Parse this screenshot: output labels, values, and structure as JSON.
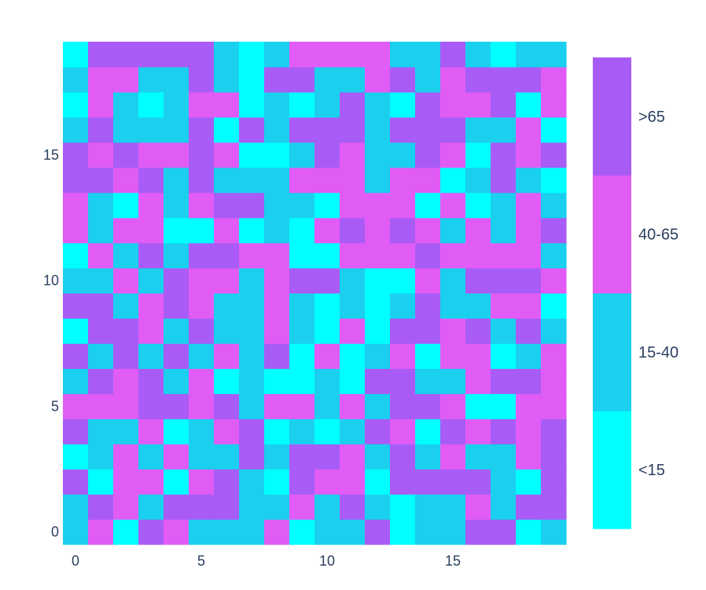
{
  "chart_data": {
    "type": "heatmap",
    "x_ticks": [
      "0",
      "5",
      "10",
      "15"
    ],
    "y_ticks": [
      "0",
      "5",
      "10",
      "15"
    ],
    "x_tick_values": [
      0,
      5,
      10,
      15
    ],
    "y_tick_values": [
      0,
      5,
      10,
      15
    ],
    "xlim": [
      -0.5,
      19.5
    ],
    "ylim": [
      -0.5,
      18.5
    ],
    "grid": false,
    "legend_position": "right",
    "colorbar": {
      "labels": [
        "<15",
        "15-40",
        "40-65",
        ">65"
      ],
      "colors": [
        "#00ffff",
        "#1ad0ee",
        "#e05cf5",
        "#a85cf5"
      ]
    },
    "category_codes": {
      "0": "<15",
      "1": "15-40",
      "2": "40-65",
      "3": ">65"
    },
    "z": [
      [
        1,
        2,
        0,
        3,
        2,
        1,
        1,
        1,
        2,
        0,
        1,
        1,
        3,
        0,
        1,
        1,
        3,
        3,
        0,
        1
      ],
      [
        1,
        3,
        2,
        1,
        3,
        3,
        3,
        1,
        1,
        2,
        1,
        3,
        1,
        0,
        1,
        1,
        2,
        1,
        3,
        3
      ],
      [
        3,
        0,
        2,
        2,
        0,
        2,
        3,
        1,
        0,
        3,
        2,
        2,
        0,
        3,
        3,
        3,
        3,
        1,
        0,
        3
      ],
      [
        0,
        1,
        2,
        1,
        2,
        1,
        1,
        3,
        1,
        3,
        3,
        2,
        1,
        3,
        1,
        2,
        1,
        1,
        2,
        3
      ],
      [
        3,
        1,
        1,
        2,
        0,
        1,
        2,
        3,
        0,
        1,
        0,
        1,
        3,
        2,
        0,
        3,
        2,
        3,
        2,
        3
      ],
      [
        2,
        2,
        2,
        3,
        3,
        2,
        3,
        1,
        2,
        2,
        1,
        2,
        1,
        3,
        3,
        2,
        0,
        0,
        2,
        2
      ],
      [
        1,
        3,
        2,
        3,
        1,
        2,
        0,
        1,
        0,
        0,
        1,
        0,
        3,
        3,
        1,
        1,
        2,
        3,
        3,
        2
      ],
      [
        3,
        1,
        3,
        1,
        3,
        1,
        2,
        1,
        3,
        0,
        2,
        0,
        1,
        2,
        0,
        2,
        2,
        0,
        1,
        2
      ],
      [
        0,
        3,
        3,
        2,
        1,
        3,
        1,
        1,
        2,
        1,
        0,
        2,
        0,
        3,
        3,
        2,
        3,
        1,
        3,
        1
      ],
      [
        3,
        3,
        1,
        2,
        3,
        2,
        1,
        1,
        2,
        1,
        0,
        1,
        0,
        1,
        3,
        1,
        1,
        2,
        2,
        0
      ],
      [
        1,
        1,
        2,
        1,
        3,
        2,
        2,
        1,
        2,
        3,
        3,
        1,
        0,
        0,
        2,
        1,
        3,
        3,
        3,
        2
      ],
      [
        0,
        2,
        1,
        3,
        1,
        3,
        3,
        2,
        2,
        0,
        0,
        2,
        2,
        2,
        3,
        2,
        2,
        2,
        2,
        1
      ],
      [
        2,
        1,
        2,
        2,
        0,
        0,
        2,
        0,
        1,
        0,
        2,
        3,
        2,
        3,
        2,
        1,
        2,
        1,
        2,
        3
      ],
      [
        2,
        1,
        0,
        2,
        1,
        2,
        3,
        3,
        1,
        1,
        0,
        2,
        2,
        2,
        0,
        2,
        0,
        1,
        2,
        1
      ],
      [
        3,
        3,
        2,
        3,
        1,
        3,
        1,
        1,
        1,
        2,
        2,
        2,
        1,
        2,
        2,
        0,
        1,
        3,
        1,
        0
      ],
      [
        3,
        2,
        3,
        2,
        2,
        3,
        2,
        0,
        0,
        1,
        3,
        2,
        1,
        1,
        3,
        2,
        0,
        3,
        2,
        3
      ],
      [
        1,
        3,
        1,
        1,
        1,
        3,
        0,
        3,
        1,
        3,
        3,
        3,
        1,
        3,
        3,
        3,
        1,
        1,
        2,
        0
      ],
      [
        0,
        2,
        1,
        0,
        1,
        2,
        2,
        0,
        1,
        0,
        1,
        3,
        1,
        0,
        3,
        2,
        2,
        3,
        0,
        2
      ],
      [
        1,
        2,
        2,
        1,
        1,
        3,
        1,
        0,
        3,
        3,
        1,
        1,
        2,
        3,
        1,
        2,
        3,
        3,
        3,
        2
      ],
      [
        0,
        3,
        3,
        3,
        3,
        3,
        1,
        0,
        1,
        2,
        2,
        2,
        2,
        1,
        1,
        3,
        1,
        0,
        1,
        1
      ]
    ]
  }
}
